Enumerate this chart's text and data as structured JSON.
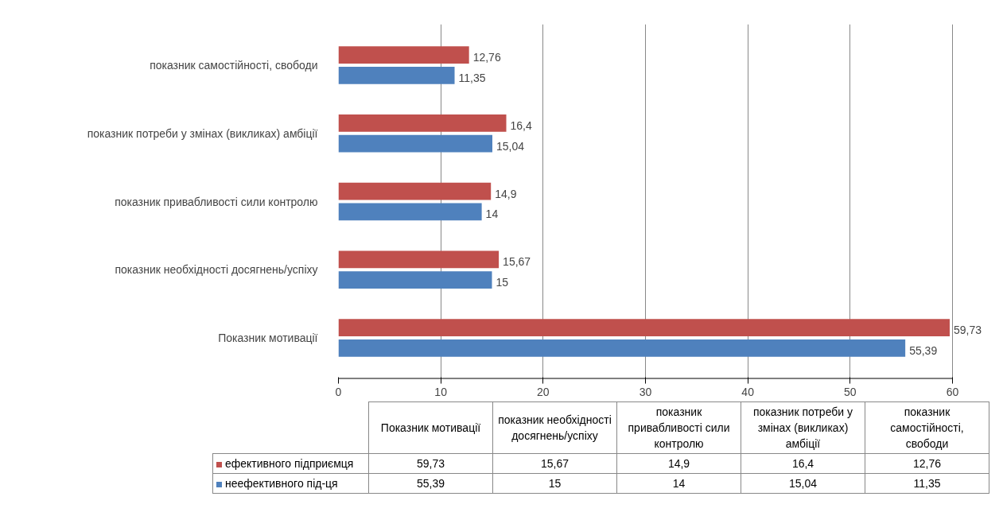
{
  "chart_data": {
    "type": "bar",
    "orientation": "horizontal",
    "categories": [
      "показник самостійності, свободи",
      "показник потреби у змінах (викликах) амбіції",
      "показник привабливості сили контролю",
      "показник необхідності досягнень/успіху",
      "Показник мотивації"
    ],
    "series": [
      {
        "name": "ефективного підприємця",
        "color": "#c0504d",
        "values": [
          12.76,
          16.4,
          14.9,
          15.67,
          59.73
        ],
        "value_labels": [
          "12,76",
          "16,4",
          "14,9",
          "15,67",
          "59,73"
        ]
      },
      {
        "name": "неефективного під-ця",
        "color": "#4f81bd",
        "values": [
          11.35,
          15.04,
          14,
          15,
          55.39
        ],
        "value_labels": [
          "11,35",
          "15,04",
          "14",
          "15",
          "55,39"
        ]
      }
    ],
    "xlim": [
      0,
      60
    ],
    "xticks": [
      0,
      10,
      20,
      30,
      40,
      50,
      60
    ],
    "grid": "x",
    "legend": "bottom"
  }
}
